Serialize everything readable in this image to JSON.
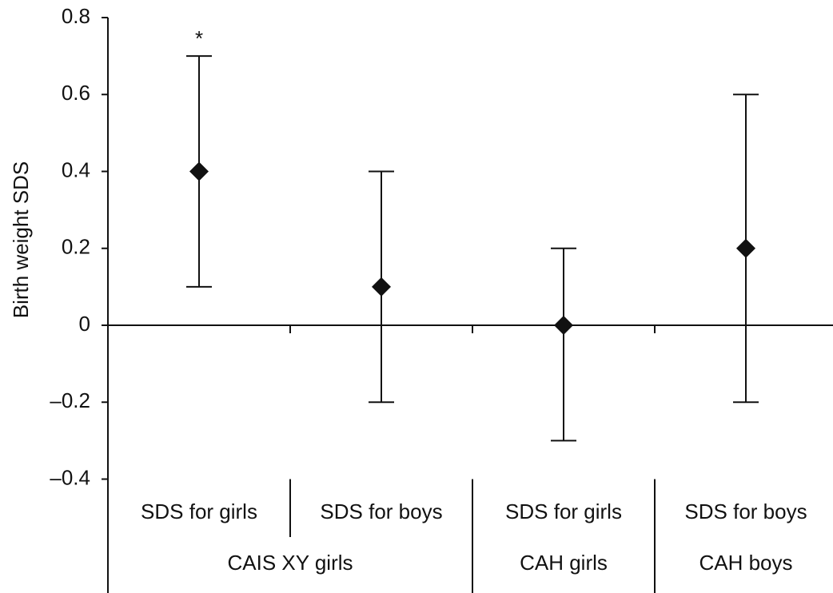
{
  "chart_data": {
    "type": "errorbar",
    "y_label": "Birth weight SDS",
    "categories": [
      "SDS for girls",
      "SDS for boys",
      "SDS for girls",
      "SDS for boys"
    ],
    "groups": [
      {
        "label": "CAIS XY girls",
        "span": 2
      },
      {
        "label": "CAH girls",
        "span": 1
      },
      {
        "label": "CAH boys",
        "span": 1
      }
    ],
    "values": [
      0.4,
      0.1,
      0,
      0.2
    ],
    "lower": [
      0.1,
      -0.2,
      -0.3,
      -0.2
    ],
    "upper": [
      0.7,
      0.4,
      0.2,
      0.6
    ],
    "annotation": "*",
    "color": "#111111",
    "ylim": [
      -0.4,
      0.8
    ],
    "yticks": [
      0.8,
      0.6,
      0.4,
      0.2,
      0,
      {
        "value": -0.2,
        "label": "–0.2"
      },
      {
        "value": -0.4,
        "label": "–0.4"
      }
    ]
  }
}
